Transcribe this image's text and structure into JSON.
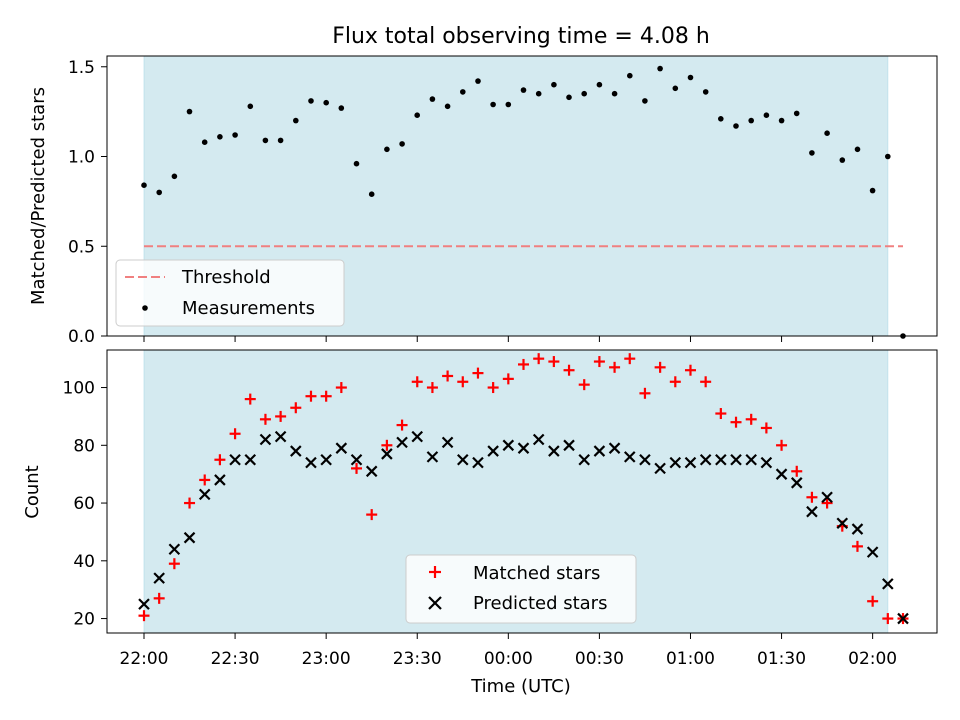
{
  "chart_data": {
    "type": "scatter",
    "title": "Flux total observing time = 4.08 h",
    "xlabel": "Time (UTC)",
    "x_ticks": [
      "22:00",
      "22:30",
      "23:00",
      "23:30",
      "00:00",
      "00:30",
      "01:00",
      "01:30",
      "02:00"
    ],
    "shaded_region": {
      "start": "22:00",
      "end": "02:05",
      "color": "#d4eaf0"
    },
    "x": [
      "22:00",
      "22:05",
      "22:10",
      "22:15",
      "22:20",
      "22:25",
      "22:30",
      "22:35",
      "22:40",
      "22:45",
      "22:50",
      "22:55",
      "23:00",
      "23:05",
      "23:10",
      "23:15",
      "23:20",
      "23:25",
      "23:30",
      "23:35",
      "23:40",
      "23:45",
      "23:50",
      "23:55",
      "00:00",
      "00:05",
      "00:10",
      "00:15",
      "00:20",
      "00:25",
      "00:30",
      "00:35",
      "00:40",
      "00:45",
      "00:50",
      "00:55",
      "01:00",
      "01:05",
      "01:10",
      "01:15",
      "01:20",
      "01:25",
      "01:30",
      "01:35",
      "01:40",
      "01:45",
      "01:50",
      "01:55",
      "02:00",
      "02:05",
      "02:10"
    ],
    "panels": [
      {
        "ylabel": "Matched/Predicted stars",
        "ylim": [
          0,
          1.56
        ],
        "y_ticks": [
          "0.0",
          "0.5",
          "1.0",
          "1.5"
        ],
        "legend": "bottom-left",
        "threshold": {
          "name": "Threshold",
          "value": 0.5,
          "color": "#f08080"
        },
        "series": [
          {
            "name": "Measurements",
            "color": "#000000",
            "values": [
              0.84,
              0.8,
              0.89,
              1.25,
              1.08,
              1.11,
              1.12,
              1.28,
              1.09,
              1.09,
              1.2,
              1.31,
              1.3,
              1.27,
              0.96,
              0.79,
              1.04,
              1.07,
              1.23,
              1.32,
              1.28,
              1.36,
              1.42,
              1.29,
              1.29,
              1.37,
              1.35,
              1.4,
              1.33,
              1.35,
              1.4,
              1.35,
              1.45,
              1.31,
              1.49,
              1.38,
              1.44,
              1.36,
              1.21,
              1.17,
              1.2,
              1.23,
              1.2,
              1.24,
              1.02,
              1.13,
              0.98,
              1.04,
              0.81,
              1.0,
              0.0
            ]
          }
        ]
      },
      {
        "ylabel": "Count",
        "ylim": [
          15,
          113
        ],
        "y_ticks": [
          "20",
          "40",
          "60",
          "80",
          "100"
        ],
        "legend": "bottom-center",
        "series": [
          {
            "name": "Matched stars",
            "color": "#ff0000",
            "marker": "plus",
            "values": [
              21,
              27,
              39,
              60,
              68,
              75,
              84,
              96,
              89,
              90,
              93,
              97,
              97,
              100,
              72,
              56,
              80,
              87,
              102,
              100,
              104,
              102,
              105,
              100,
              103,
              108,
              110,
              109,
              106,
              101,
              109,
              107,
              110,
              98,
              107,
              102,
              106,
              102,
              91,
              88,
              89,
              86,
              80,
              71,
              62,
              60,
              52,
              45,
              26,
              20,
              20
            ]
          },
          {
            "name": "Predicted stars",
            "color": "#000000",
            "marker": "x",
            "values": [
              25,
              34,
              44,
              48,
              63,
              68,
              75,
              75,
              82,
              83,
              78,
              74,
              75,
              79,
              75,
              71,
              77,
              81,
              83,
              76,
              81,
              75,
              74,
              78,
              80,
              79,
              82,
              78,
              80,
              75,
              78,
              79,
              76,
              75,
              72,
              74,
              74,
              75,
              75,
              75,
              75,
              74,
              70,
              67,
              57,
              62,
              53,
              51,
              43,
              32,
              20
            ]
          }
        ]
      }
    ]
  }
}
